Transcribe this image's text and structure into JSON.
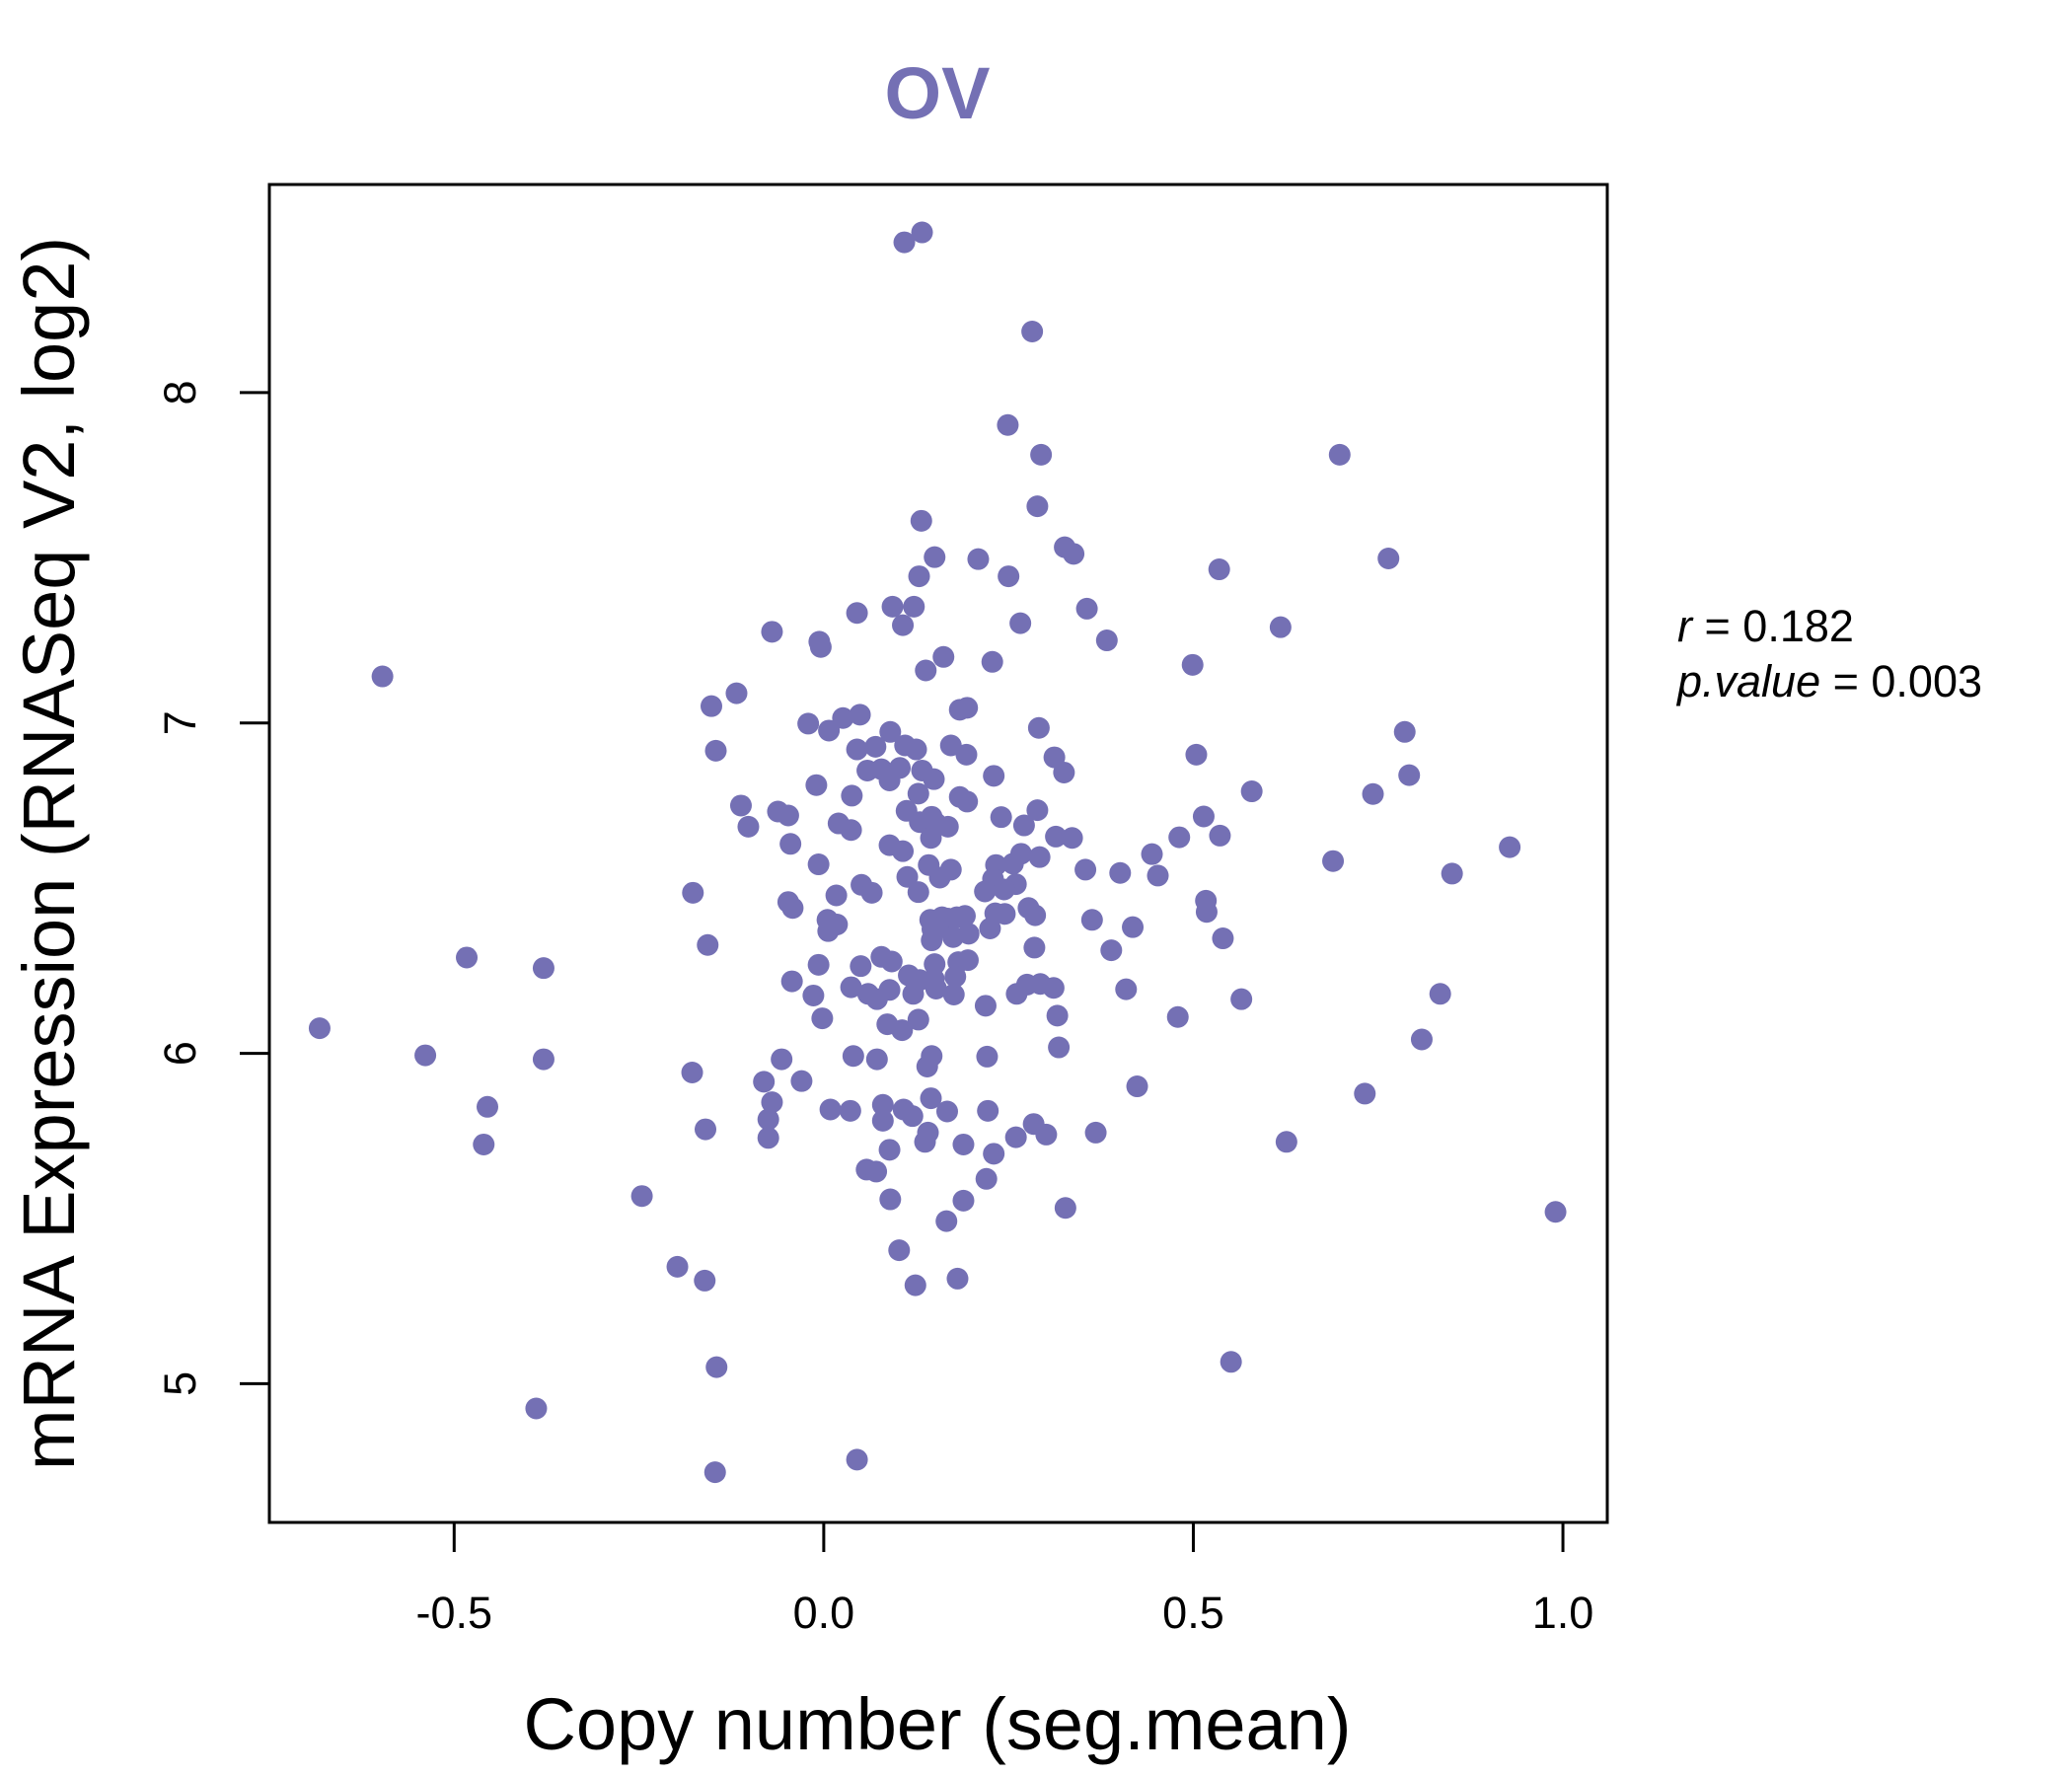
{
  "chart_data": {
    "type": "scatter",
    "title": "OV",
    "xlabel": "Copy number (seg.mean)",
    "ylabel": "mRNA Expression (RNASeq V2, log2)",
    "xlim": [
      -0.75,
      1.06
    ],
    "ylim": [
      4.58,
      8.63
    ],
    "x_ticks": [
      -0.5,
      0.0,
      0.5,
      1.0
    ],
    "x_tick_labels": [
      "-0.5",
      "0.0",
      "0.5",
      "1.0"
    ],
    "y_ticks": [
      5,
      6,
      7,
      8
    ],
    "y_tick_labels": [
      "5",
      "6",
      "7",
      "8"
    ],
    "grid": false,
    "point_color": "#7470b4",
    "annotation": {
      "r_symbol": "r",
      "r_value": "0.182",
      "p_symbol": "p.value",
      "p_value": "0.003"
    },
    "points": [
      [
        0.109,
        8.455
      ],
      [
        0.133,
        8.485
      ],
      [
        0.282,
        8.185
      ],
      [
        0.249,
        7.902
      ],
      [
        0.294,
        7.812
      ],
      [
        0.698,
        7.812
      ],
      [
        0.289,
        7.656
      ],
      [
        0.132,
        7.612
      ],
      [
        0.15,
        7.502
      ],
      [
        0.209,
        7.496
      ],
      [
        0.326,
        7.532
      ],
      [
        0.338,
        7.512
      ],
      [
        0.764,
        7.498
      ],
      [
        0.129,
        7.444
      ],
      [
        0.25,
        7.444
      ],
      [
        0.535,
        7.465
      ],
      [
        0.093,
        7.352
      ],
      [
        0.122,
        7.352
      ],
      [
        0.045,
        7.333
      ],
      [
        0.107,
        7.296
      ],
      [
        0.266,
        7.302
      ],
      [
        0.356,
        7.346
      ],
      [
        0.618,
        7.29
      ],
      [
        0.383,
        7.25
      ],
      [
        -0.07,
        7.276
      ],
      [
        -0.006,
        7.246
      ],
      [
        -0.004,
        7.23
      ],
      [
        0.162,
        7.2
      ],
      [
        0.228,
        7.185
      ],
      [
        0.138,
        7.159
      ],
      [
        0.499,
        7.176
      ],
      [
        -0.597,
        7.141
      ],
      [
        -0.118,
        7.09
      ],
      [
        -0.152,
        7.051
      ],
      [
        0.184,
        7.04
      ],
      [
        0.194,
        7.046
      ],
      [
        0.026,
        7.015
      ],
      [
        0.049,
        7.025
      ],
      [
        -0.021,
        6.998
      ],
      [
        0.007,
        6.977
      ],
      [
        0.09,
        6.973
      ],
      [
        0.291,
        6.985
      ],
      [
        0.786,
        6.973
      ],
      [
        -0.146,
        6.916
      ],
      [
        0.045,
        6.92
      ],
      [
        0.07,
        6.928
      ],
      [
        0.11,
        6.932
      ],
      [
        0.125,
        6.92
      ],
      [
        0.172,
        6.932
      ],
      [
        0.193,
        6.904
      ],
      [
        0.312,
        6.896
      ],
      [
        0.504,
        6.904
      ],
      [
        0.059,
        6.856
      ],
      [
        0.078,
        6.86
      ],
      [
        0.103,
        6.864
      ],
      [
        0.133,
        6.856
      ],
      [
        0.149,
        6.83
      ],
      [
        0.089,
        6.826
      ],
      [
        0.23,
        6.84
      ],
      [
        0.325,
        6.85
      ],
      [
        0.792,
        6.842
      ],
      [
        -0.01,
        6.812
      ],
      [
        0.038,
        6.78
      ],
      [
        0.128,
        6.786
      ],
      [
        0.184,
        6.776
      ],
      [
        0.194,
        6.762
      ],
      [
        0.579,
        6.793
      ],
      [
        0.743,
        6.785
      ],
      [
        -0.112,
        6.75
      ],
      [
        -0.062,
        6.732
      ],
      [
        -0.048,
        6.72
      ],
      [
        0.112,
        6.734
      ],
      [
        0.146,
        6.716
      ],
      [
        0.24,
        6.715
      ],
      [
        0.289,
        6.736
      ],
      [
        0.514,
        6.717
      ],
      [
        -0.102,
        6.686
      ],
      [
        0.02,
        6.696
      ],
      [
        0.037,
        6.676
      ],
      [
        0.13,
        6.7
      ],
      [
        0.152,
        6.696
      ],
      [
        0.168,
        6.686
      ],
      [
        0.271,
        6.69
      ],
      [
        0.314,
        6.656
      ],
      [
        0.336,
        6.652
      ],
      [
        0.481,
        6.654
      ],
      [
        0.536,
        6.659
      ],
      [
        -0.045,
        6.634
      ],
      [
        0.089,
        6.63
      ],
      [
        0.107,
        6.612
      ],
      [
        0.145,
        6.652
      ],
      [
        0.267,
        6.604
      ],
      [
        0.292,
        6.594
      ],
      [
        0.444,
        6.603
      ],
      [
        0.928,
        6.624
      ],
      [
        -0.007,
        6.572
      ],
      [
        0.142,
        6.57
      ],
      [
        0.172,
        6.556
      ],
      [
        0.233,
        6.57
      ],
      [
        0.256,
        6.574
      ],
      [
        0.354,
        6.556
      ],
      [
        0.401,
        6.546
      ],
      [
        0.689,
        6.582
      ],
      [
        0.85,
        6.544
      ],
      [
        0.113,
        6.534
      ],
      [
        0.157,
        6.532
      ],
      [
        0.229,
        6.528
      ],
      [
        0.26,
        6.512
      ],
      [
        0.452,
        6.538
      ],
      [
        0.051,
        6.51
      ],
      [
        -0.177,
        6.486
      ],
      [
        0.017,
        6.478
      ],
      [
        0.065,
        6.486
      ],
      [
        0.128,
        6.488
      ],
      [
        0.218,
        6.49
      ],
      [
        0.244,
        6.496
      ],
      [
        0.517,
        6.462
      ],
      [
        -0.048,
        6.458
      ],
      [
        -0.042,
        6.44
      ],
      [
        0.16,
        6.412
      ],
      [
        0.232,
        6.424
      ],
      [
        0.277,
        6.44
      ],
      [
        0.286,
        6.418
      ],
      [
        0.518,
        6.428
      ],
      [
        0.005,
        6.404
      ],
      [
        0.018,
        6.39
      ],
      [
        0.144,
        6.404
      ],
      [
        0.168,
        6.408
      ],
      [
        0.18,
        6.412
      ],
      [
        0.191,
        6.416
      ],
      [
        0.245,
        6.422
      ],
      [
        0.363,
        6.404
      ],
      [
        0.006,
        6.37
      ],
      [
        0.147,
        6.376
      ],
      [
        0.16,
        6.382
      ],
      [
        0.196,
        6.362
      ],
      [
        0.225,
        6.378
      ],
      [
        0.418,
        6.382
      ],
      [
        0.54,
        6.348
      ],
      [
        -0.157,
        6.328
      ],
      [
        0.146,
        6.342
      ],
      [
        0.175,
        6.352
      ],
      [
        0.285,
        6.32
      ],
      [
        0.389,
        6.312
      ],
      [
        -0.483,
        6.29
      ],
      [
        -0.379,
        6.258
      ],
      [
        -0.007,
        6.268
      ],
      [
        0.05,
        6.264
      ],
      [
        0.078,
        6.292
      ],
      [
        0.092,
        6.278
      ],
      [
        0.15,
        6.27
      ],
      [
        0.182,
        6.276
      ],
      [
        0.195,
        6.282
      ],
      [
        -0.043,
        6.218
      ],
      [
        0.037,
        6.2
      ],
      [
        0.115,
        6.236
      ],
      [
        0.13,
        6.222
      ],
      [
        0.149,
        6.225
      ],
      [
        0.178,
        6.232
      ],
      [
        0.275,
        6.208
      ],
      [
        0.293,
        6.21
      ],
      [
        0.311,
        6.198
      ],
      [
        0.409,
        6.194
      ],
      [
        0.834,
        6.18
      ],
      [
        -0.014,
        6.175
      ],
      [
        0.06,
        6.18
      ],
      [
        0.072,
        6.164
      ],
      [
        0.089,
        6.192
      ],
      [
        0.121,
        6.18
      ],
      [
        0.152,
        6.196
      ],
      [
        0.176,
        6.178
      ],
      [
        0.219,
        6.144
      ],
      [
        0.261,
        6.18
      ],
      [
        0.565,
        6.164
      ],
      [
        -0.682,
        6.076
      ],
      [
        -0.002,
        6.106
      ],
      [
        0.086,
        6.088
      ],
      [
        0.106,
        6.07
      ],
      [
        0.128,
        6.102
      ],
      [
        0.316,
        6.114
      ],
      [
        0.479,
        6.11
      ],
      [
        0.809,
        6.042
      ],
      [
        -0.539,
        5.994
      ],
      [
        -0.379,
        5.982
      ],
      [
        -0.057,
        5.982
      ],
      [
        0.04,
        5.992
      ],
      [
        0.072,
        5.982
      ],
      [
        0.146,
        5.992
      ],
      [
        0.221,
        5.99
      ],
      [
        0.318,
        6.018
      ],
      [
        -0.178,
        5.942
      ],
      [
        -0.081,
        5.914
      ],
      [
        -0.03,
        5.916
      ],
      [
        0.14,
        5.96
      ],
      [
        0.424,
        5.9
      ],
      [
        -0.455,
        5.838
      ],
      [
        -0.07,
        5.852
      ],
      [
        0.009,
        5.83
      ],
      [
        0.036,
        5.826
      ],
      [
        0.08,
        5.844
      ],
      [
        0.108,
        5.83
      ],
      [
        0.145,
        5.864
      ],
      [
        0.167,
        5.824
      ],
      [
        0.222,
        5.826
      ],
      [
        0.732,
        5.878
      ],
      [
        -0.16,
        5.77
      ],
      [
        -0.075,
        5.8
      ],
      [
        0.08,
        5.796
      ],
      [
        0.12,
        5.81
      ],
      [
        0.141,
        5.76
      ],
      [
        0.284,
        5.786
      ],
      [
        0.301,
        5.754
      ],
      [
        0.368,
        5.76
      ],
      [
        -0.46,
        5.724
      ],
      [
        -0.075,
        5.744
      ],
      [
        0.089,
        5.708
      ],
      [
        0.137,
        5.732
      ],
      [
        0.189,
        5.724
      ],
      [
        0.23,
        5.696
      ],
      [
        0.26,
        5.746
      ],
      [
        0.626,
        5.732
      ],
      [
        0.058,
        5.648
      ],
      [
        0.071,
        5.642
      ],
      [
        0.22,
        5.62
      ],
      [
        -0.246,
        5.568
      ],
      [
        0.09,
        5.558
      ],
      [
        0.166,
        5.492
      ],
      [
        0.189,
        5.554
      ],
      [
        0.327,
        5.532
      ],
      [
        0.99,
        5.52
      ],
      [
        0.102,
        5.404
      ],
      [
        -0.198,
        5.354
      ],
      [
        -0.161,
        5.312
      ],
      [
        0.124,
        5.298
      ],
      [
        0.181,
        5.318
      ],
      [
        0.551,
        5.066
      ],
      [
        -0.145,
        5.05
      ],
      [
        -0.389,
        4.925
      ],
      [
        0.045,
        4.77
      ],
      [
        -0.147,
        4.732
      ]
    ]
  }
}
